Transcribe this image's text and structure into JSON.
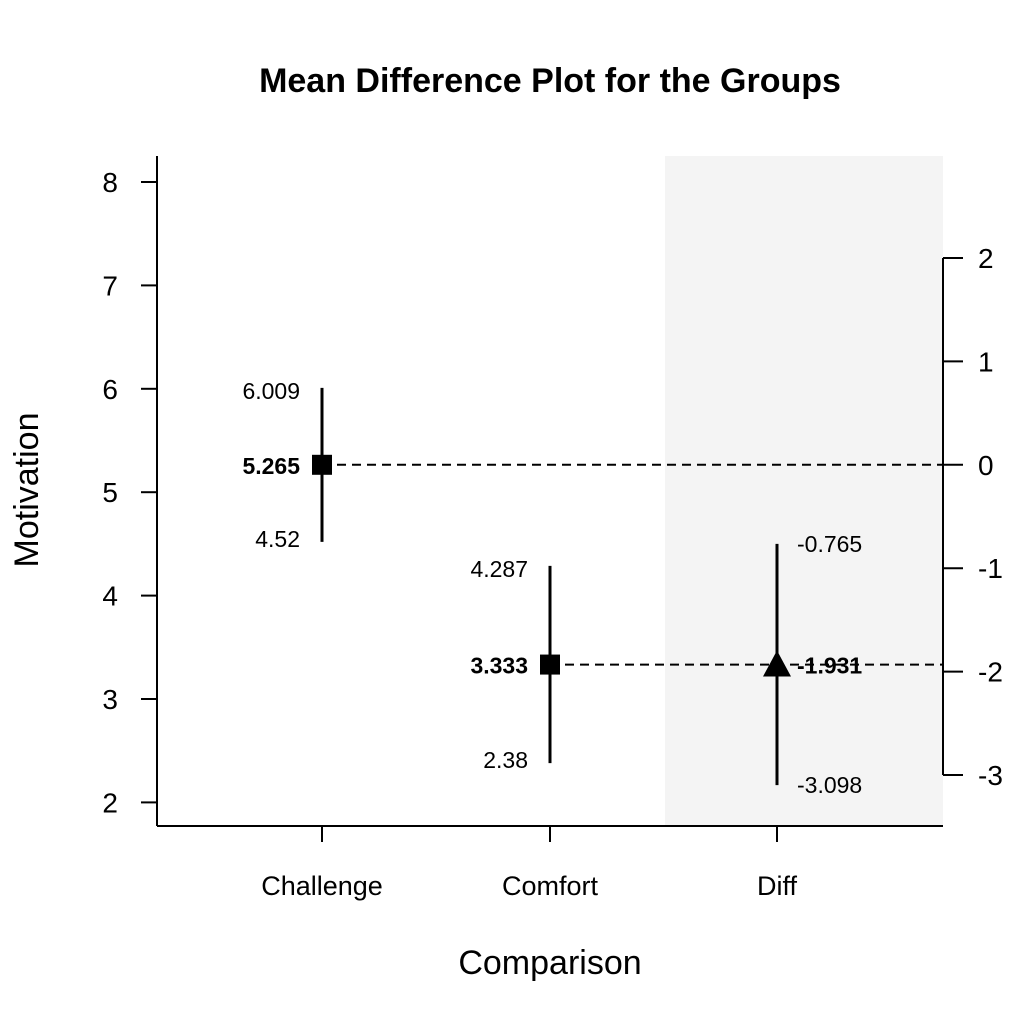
{
  "chart_data": {
    "type": "scatter",
    "title": "Mean Difference Plot for the Groups",
    "xlabel": "Comparison",
    "ylabel": "Motivation",
    "categories": [
      "Challenge",
      "Comfort",
      "Diff"
    ],
    "ylim": [
      2,
      8
    ],
    "yticks": [
      "2",
      "3",
      "4",
      "5",
      "6",
      "7",
      "8"
    ],
    "right_ylim": [
      -3,
      2
    ],
    "right_yticks": [
      "-3",
      "-2",
      "-1",
      "0",
      "1",
      "2"
    ],
    "groups": [
      {
        "name": "Challenge",
        "mean": 5.265,
        "lower": 4.52,
        "upper": 6.009,
        "mean_label": "5.265",
        "lower_label": "4.52",
        "upper_label": "6.009",
        "marker": "square"
      },
      {
        "name": "Comfort",
        "mean": 3.333,
        "lower": 2.38,
        "upper": 4.287,
        "mean_label": "3.333",
        "lower_label": "2.38",
        "upper_label": "4.287",
        "marker": "square"
      }
    ],
    "difference": {
      "name": "Diff",
      "mean": -1.931,
      "lower": -3.098,
      "upper": -0.765,
      "mean_label": "-1.931",
      "lower_label": "-3.098",
      "upper_label": "-0.765",
      "marker": "triangle"
    },
    "colors": {
      "marks": "#000000",
      "diff_panel": "#f4f4f4"
    },
    "grid": false,
    "legend": "none"
  }
}
